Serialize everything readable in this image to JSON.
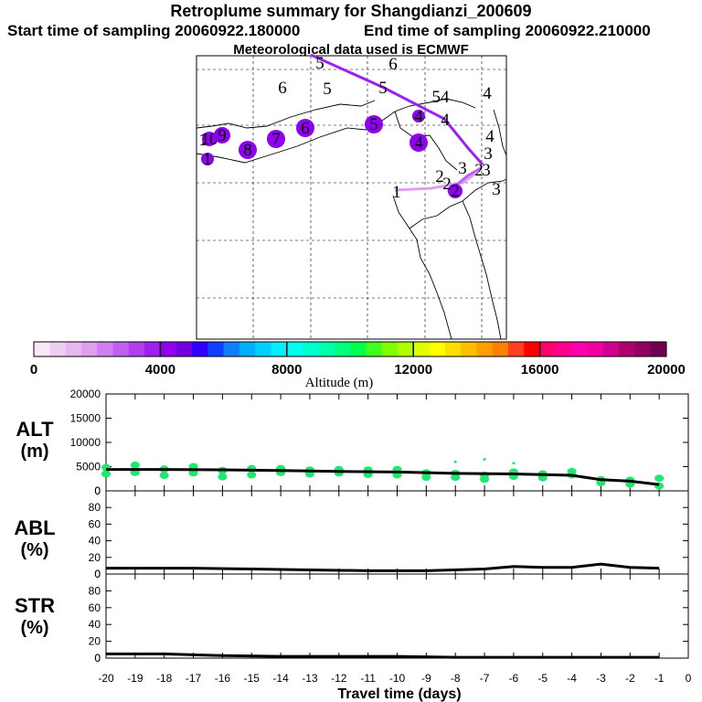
{
  "header": {
    "title": "Retroplume summary for Shangdianzi_200609",
    "start_label": "Start time of sampling 20060922.180000",
    "end_label": "End time of sampling 20060922.210000",
    "met_label": "Meteorological data used is ECMWF"
  },
  "colorbar": {
    "label": "Altitude (m)",
    "ticks": [
      "0",
      "4000",
      "8000",
      "12000",
      "16000",
      "20000"
    ],
    "colors": [
      "#f7e7f7",
      "#efcfef",
      "#e7b7ef",
      "#df9fef",
      "#cf7fef",
      "#bf5fef",
      "#af3fef",
      "#9f1fef",
      "#8f00ef",
      "#6f00df",
      "#2f00ff",
      "#0f3fff",
      "#0f7fff",
      "#00afff",
      "#00cfff",
      "#00efff",
      "#00ffef",
      "#00ffcf",
      "#00ffaf",
      "#00ff7f",
      "#00ff4f",
      "#3fff1f",
      "#7fff00",
      "#afff00",
      "#dfff00",
      "#ffff00",
      "#ffdf00",
      "#ffbf00",
      "#ff9f00",
      "#ff7f00",
      "#ff3f1f",
      "#ff0000",
      "#ff006f",
      "#ff008f",
      "#ff00af",
      "#ef009f",
      "#cf008f",
      "#af006f",
      "#8f005f",
      "#6f004f"
    ]
  },
  "map": {
    "markers": [
      {
        "n": "1",
        "x": 434,
        "y": 210,
        "r": 0,
        "c": "#e7b7ef"
      },
      {
        "n": "1",
        "x": 227,
        "y": 174,
        "r": 7,
        "c": "#8f00ef"
      },
      {
        "n": "1",
        "x": 222,
        "y": 153,
        "r": 0,
        "c": "#8f00ef"
      },
      {
        "n": "10",
        "x": 229,
        "y": 152,
        "r": 8,
        "c": "#8f00ef"
      },
      {
        "n": "9",
        "x": 243,
        "y": 148,
        "r": 9,
        "c": "#8f00ef"
      },
      {
        "n": "8",
        "x": 271,
        "y": 164,
        "r": 10,
        "c": "#8f00ef"
      },
      {
        "n": "7",
        "x": 302,
        "y": 152,
        "r": 10,
        "c": "#8f00ef"
      },
      {
        "n": "6",
        "x": 334,
        "y": 140,
        "r": 10,
        "c": "#8f00ef"
      },
      {
        "n": "6",
        "x": 309,
        "y": 96,
        "r": 0,
        "c": "#8f00ef"
      },
      {
        "n": "6",
        "x": 430,
        "y": 70,
        "r": 0,
        "c": "#8f00ef"
      },
      {
        "n": "5",
        "x": 409,
        "y": 136,
        "r": 10,
        "c": "#8f00ef"
      },
      {
        "n": "5",
        "x": 358,
        "y": 97,
        "r": 0,
        "c": "#8f00ef"
      },
      {
        "n": "5",
        "x": 419,
        "y": 96,
        "r": 0,
        "c": "#8f00ef"
      },
      {
        "n": "5",
        "x": 350,
        "y": 69,
        "r": 0,
        "c": "#8f00ef"
      },
      {
        "n": "4",
        "x": 458,
        "y": 156,
        "r": 10,
        "c": "#8f00ef"
      },
      {
        "n": "4",
        "x": 458,
        "y": 127,
        "r": 7,
        "c": "#8f00ef"
      },
      {
        "n": "4",
        "x": 487,
        "y": 131,
        "r": 0,
        "c": "#8f00ef"
      },
      {
        "n": "54",
        "x": 482,
        "y": 106,
        "r": 0,
        "c": "#8f00ef"
      },
      {
        "n": "4",
        "x": 533,
        "y": 102,
        "r": 0,
        "c": "#bf5fef"
      },
      {
        "n": "4",
        "x": 536,
        "y": 149,
        "r": 0,
        "c": "#bf5fef"
      },
      {
        "n": "3",
        "x": 534,
        "y": 168,
        "r": 0,
        "c": "#bf5fef"
      },
      {
        "n": "3",
        "x": 532,
        "y": 186,
        "r": 0,
        "c": "#df9fef"
      },
      {
        "n": "3",
        "x": 543,
        "y": 207,
        "r": 0,
        "c": "#df9fef"
      },
      {
        "n": "3",
        "x": 506,
        "y": 184,
        "r": 0,
        "c": "#bf5fef"
      },
      {
        "n": "2",
        "x": 524,
        "y": 186,
        "r": 0,
        "c": "#bf5fef"
      },
      {
        "n": "2",
        "x": 481,
        "y": 193,
        "r": 0,
        "c": "#bf5fef"
      },
      {
        "n": "2",
        "x": 498,
        "y": 209,
        "r": 8,
        "c": "#8f00ef"
      },
      {
        "n": "2",
        "x": 489,
        "y": 201,
        "r": 0,
        "c": "#df9fef"
      }
    ],
    "tracks": [
      {
        "c": "#a020f0",
        "pts": [
          [
            340,
            60
          ],
          [
            420,
            96
          ],
          [
            486,
            130
          ],
          [
            512,
            162
          ],
          [
            528,
            180
          ]
        ]
      },
      {
        "c": "#df9fef",
        "pts": [
          [
            432,
            208
          ],
          [
            472,
            206
          ],
          [
            506,
            200
          ],
          [
            520,
            190
          ]
        ]
      },
      {
        "c": "#bf5fef",
        "pts": [
          [
            490,
            210
          ],
          [
            512,
            192
          ],
          [
            526,
            184
          ]
        ]
      }
    ]
  },
  "panels": {
    "xlabel": "Travel time (days)",
    "xticks": [
      "-20",
      "-19",
      "-18",
      "-17",
      "-16",
      "-15",
      "-14",
      "-13",
      "-12",
      "-11",
      "-10",
      "-9",
      "-8",
      "-7",
      "-6",
      "-5",
      "-4",
      "-3",
      "-2",
      "-1",
      "0"
    ],
    "alt": {
      "label1": "ALT",
      "label2": "(m)",
      "yticks": [
        "20000",
        "15000",
        "10000",
        "5000",
        "0"
      ],
      "ylim": [
        0,
        20000
      ],
      "median": [
        [
          -20,
          4400
        ],
        [
          -18,
          4400
        ],
        [
          -16,
          4350
        ],
        [
          -14,
          4200
        ],
        [
          -12,
          4000
        ],
        [
          -10,
          3900
        ],
        [
          -8,
          3600
        ],
        [
          -6,
          3500
        ],
        [
          -4,
          3200
        ],
        [
          -3,
          2300
        ],
        [
          -2,
          2000
        ],
        [
          -1,
          1300
        ]
      ],
      "points": [
        [
          -20,
          4800
        ],
        [
          -20,
          3500
        ],
        [
          -19,
          5300
        ],
        [
          -19,
          3800
        ],
        [
          -18,
          4500
        ],
        [
          -18,
          3200
        ],
        [
          -17,
          5000
        ],
        [
          -17,
          3700
        ],
        [
          -16,
          4200
        ],
        [
          -16,
          2900
        ],
        [
          -15,
          4600
        ],
        [
          -15,
          3300
        ],
        [
          -14,
          4600
        ],
        [
          -14,
          3800
        ],
        [
          -13,
          4300
        ],
        [
          -13,
          3500
        ],
        [
          -12,
          4400
        ],
        [
          -12,
          3700
        ],
        [
          -11,
          4300
        ],
        [
          -11,
          3400
        ],
        [
          -10,
          4400
        ],
        [
          -10,
          3300
        ],
        [
          -9,
          3700
        ],
        [
          -9,
          2800
        ],
        [
          -8,
          3600
        ],
        [
          -8,
          2800
        ],
        [
          -7,
          3200
        ],
        [
          -7,
          2400
        ],
        [
          -6,
          3900
        ],
        [
          -6,
          3000
        ],
        [
          -5,
          3500
        ],
        [
          -5,
          2700
        ],
        [
          -4,
          4000
        ],
        [
          -4,
          3300
        ],
        [
          -3,
          2300
        ],
        [
          -3,
          1700
        ],
        [
          -2,
          2200
        ],
        [
          -2,
          1400
        ],
        [
          -1,
          2600
        ],
        [
          -1,
          1000
        ]
      ],
      "outliers": [
        [
          -8,
          6000
        ],
        [
          -7,
          6500
        ],
        [
          -6,
          5700
        ]
      ]
    },
    "abl": {
      "label1": "ABL",
      "label2": "(%)",
      "yticks": [
        "80",
        "60",
        "40",
        "20",
        "0"
      ],
      "ylim": [
        0,
        100
      ],
      "median": [
        [
          -20,
          7
        ],
        [
          -17,
          7
        ],
        [
          -15,
          6
        ],
        [
          -13,
          5
        ],
        [
          -11,
          4
        ],
        [
          -9,
          4
        ],
        [
          -7,
          6
        ],
        [
          -6,
          9
        ],
        [
          -5,
          8
        ],
        [
          -4,
          8
        ],
        [
          -3,
          12
        ],
        [
          -2,
          8
        ],
        [
          -1,
          7
        ]
      ]
    },
    "str": {
      "label1": "STR",
      "label2": "(%)",
      "yticks": [
        "80",
        "60",
        "40",
        "20",
        "0"
      ],
      "ylim": [
        0,
        100
      ],
      "median": [
        [
          -20,
          5
        ],
        [
          -18,
          5
        ],
        [
          -17,
          4
        ],
        [
          -16,
          3
        ],
        [
          -14,
          2
        ],
        [
          -12,
          2
        ],
        [
          -10,
          2
        ],
        [
          -8,
          1
        ],
        [
          -6,
          1
        ],
        [
          -4,
          1
        ],
        [
          -2,
          1
        ],
        [
          -1,
          1
        ]
      ]
    }
  },
  "chart_data": [
    {
      "type": "scatter",
      "title": "Retroplume summary for Shangdianzi_200609",
      "xlabel": "Travel time (days)",
      "ylabel": "ALT (m)",
      "xlim": [
        -20,
        0
      ],
      "ylim": [
        0,
        20000
      ],
      "series": [
        {
          "name": "altitude clusters",
          "x": [
            -20,
            -19,
            -18,
            -17,
            -16,
            -15,
            -14,
            -13,
            -12,
            -11,
            -10,
            -9,
            -8,
            -7,
            -6,
            -5,
            -4,
            -3,
            -2,
            -1
          ],
          "values": [
            4200,
            4500,
            3800,
            4300,
            3500,
            3900,
            4200,
            3900,
            4000,
            3800,
            3800,
            3200,
            3200,
            2800,
            3400,
            3100,
            3600,
            2000,
            1800,
            1800
          ]
        },
        {
          "name": "median",
          "x": [
            -20,
            -18,
            -16,
            -14,
            -12,
            -10,
            -8,
            -6,
            -4,
            -3,
            -2,
            -1
          ],
          "values": [
            4400,
            4400,
            4350,
            4200,
            4000,
            3900,
            3600,
            3500,
            3200,
            2300,
            2000,
            1300
          ]
        }
      ]
    },
    {
      "type": "line",
      "xlabel": "Travel time (days)",
      "ylabel": "ABL (%)",
      "xlim": [
        -20,
        0
      ],
      "ylim": [
        0,
        100
      ],
      "series": [
        {
          "name": "ABL",
          "x": [
            -20,
            -17,
            -15,
            -13,
            -11,
            -9,
            -7,
            -6,
            -5,
            -4,
            -3,
            -2,
            -1
          ],
          "values": [
            7,
            7,
            6,
            5,
            4,
            4,
            6,
            9,
            8,
            8,
            12,
            8,
            7
          ]
        }
      ]
    },
    {
      "type": "line",
      "xlabel": "Travel time (days)",
      "ylabel": "STR (%)",
      "xlim": [
        -20,
        0
      ],
      "ylim": [
        0,
        100
      ],
      "series": [
        {
          "name": "STR",
          "x": [
            -20,
            -18,
            -17,
            -16,
            -14,
            -12,
            -10,
            -8,
            -6,
            -4,
            -2,
            -1
          ],
          "values": [
            5,
            5,
            4,
            3,
            2,
            2,
            2,
            1,
            1,
            1,
            1,
            1
          ]
        }
      ]
    }
  ]
}
